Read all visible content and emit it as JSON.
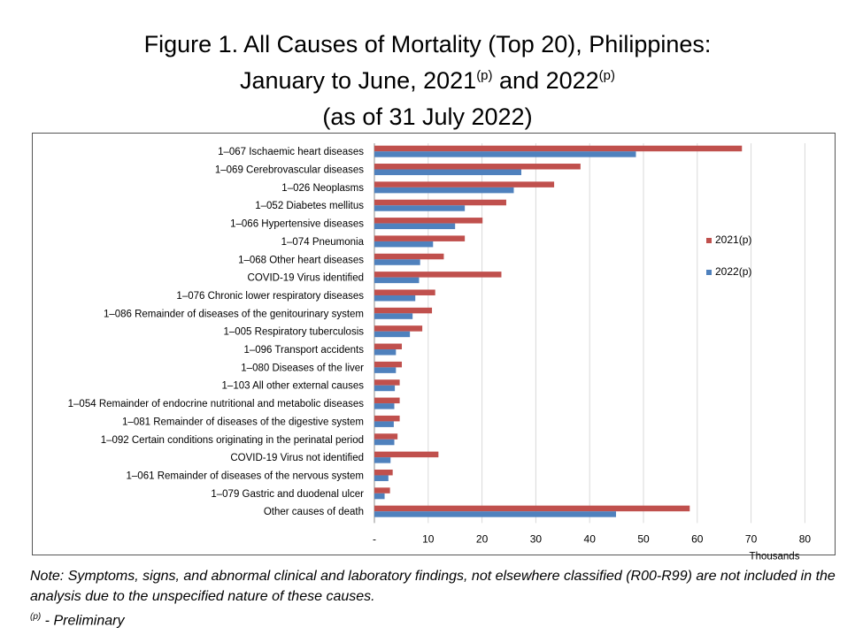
{
  "header": {
    "title_line1": "Figure 1. All Causes of Mortality (Top 20), Philippines:",
    "title_line2_pre": "January to June, 2021",
    "title_line2_sup1": "(p)",
    "title_line2_mid": " and 2022",
    "title_line2_sup2": "(p)",
    "title_line3": "(as of 31 July 2022)"
  },
  "note": {
    "text": "Note: Symptoms, signs, and abnormal clinical and laboratory findings, not elsewhere classified (R00-R99) are not included in the analysis due to the unspecified nature of these causes.",
    "prelim_sup": "(p)",
    "prelim_text": " - Preliminary"
  },
  "colors": {
    "series_2021": "#C0504D",
    "series_2022": "#4F81BD"
  },
  "chart_data": {
    "type": "bar",
    "orientation": "horizontal",
    "xlabel": "Thousands",
    "xlim": [
      0,
      80
    ],
    "xticks": [
      "-",
      "10",
      "20",
      "30",
      "40",
      "50",
      "60",
      "70",
      "80"
    ],
    "grid": true,
    "legend_position": "right",
    "categories": [
      "1–067 Ischaemic heart diseases",
      "1–069 Cerebrovascular diseases",
      "1–026 Neoplasms",
      "1–052 Diabetes mellitus",
      "1–066 Hypertensive diseases",
      "1–074 Pneumonia",
      "1–068 Other heart diseases",
      "COVID-19 Virus identified",
      "1–076 Chronic lower respiratory diseases",
      "1–086 Remainder of diseases of the genitourinary system",
      "1–005 Respiratory tuberculosis",
      "1–096 Transport accidents",
      "1–080 Diseases of the liver",
      "1–103 All other external causes",
      "1–054 Remainder of endocrine nutritional and metabolic diseases",
      "1–081 Remainder of diseases of the digestive system",
      "1–092 Certain conditions originating in the perinatal period",
      "COVID-19 Virus not identified",
      "1–061 Remainder of diseases of the nervous system",
      "1–079 Gastric and duodenal ulcer",
      "Other causes of death"
    ],
    "series": [
      {
        "name": "2021(p)",
        "values": [
          68.3,
          38.3,
          33.4,
          24.5,
          20.1,
          16.8,
          12.9,
          23.6,
          11.3,
          10.7,
          8.9,
          5.1,
          5.1,
          4.7,
          4.7,
          4.7,
          4.3,
          11.9,
          3.4,
          2.9,
          58.6
        ]
      },
      {
        "name": "2022(p)",
        "values": [
          48.6,
          27.3,
          25.9,
          16.8,
          15.0,
          10.9,
          8.5,
          8.3,
          7.6,
          7.1,
          6.6,
          4.0,
          4.0,
          3.8,
          3.7,
          3.6,
          3.7,
          3.0,
          2.6,
          1.9,
          44.9
        ]
      }
    ]
  }
}
